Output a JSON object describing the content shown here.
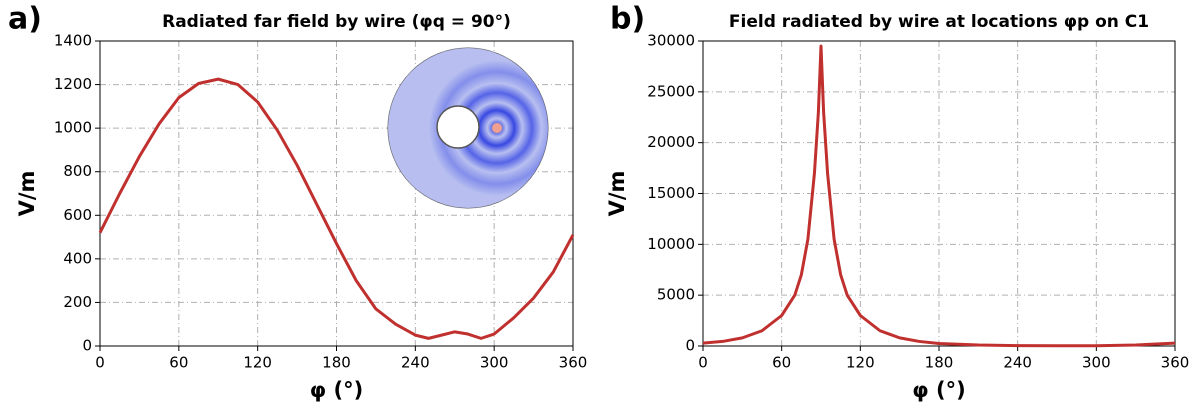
{
  "chart_data": [
    {
      "type": "line",
      "panel_label": "a)",
      "title": "Radiated far field by wire (φq = 90°)",
      "xlabel": "φ (°)",
      "ylabel": "V/m",
      "x": [
        0,
        15,
        30,
        45,
        60,
        75,
        90,
        105,
        120,
        135,
        150,
        165,
        180,
        195,
        210,
        225,
        240,
        250,
        260,
        270,
        280,
        290,
        300,
        315,
        330,
        345,
        360
      ],
      "values": [
        520,
        700,
        870,
        1020,
        1140,
        1205,
        1225,
        1200,
        1120,
        990,
        830,
        650,
        470,
        300,
        170,
        100,
        50,
        35,
        50,
        65,
        55,
        35,
        55,
        130,
        220,
        340,
        510
      ],
      "color": "#c0302e",
      "xlim": [
        0,
        360
      ],
      "xticks": [
        0,
        60,
        120,
        180,
        240,
        300,
        360
      ],
      "ylim": [
        0,
        1400
      ],
      "yticks": [
        0,
        200,
        400,
        600,
        800,
        1000,
        1200,
        1400
      ],
      "grid": true
    },
    {
      "type": "line",
      "panel_label": "b)",
      "title": "Field radiated  by wire at locations φp on C1",
      "xlabel": "φ (°)",
      "ylabel": "V/m",
      "x": [
        0,
        15,
        30,
        45,
        60,
        70,
        75,
        80,
        85,
        88,
        90,
        92,
        95,
        100,
        105,
        110,
        120,
        135,
        150,
        165,
        180,
        210,
        240,
        270,
        300,
        330,
        360
      ],
      "values": [
        280,
        450,
        800,
        1500,
        3000,
        5000,
        7000,
        10500,
        17000,
        23000,
        29500,
        23000,
        17000,
        10500,
        7000,
        5000,
        3000,
        1500,
        800,
        450,
        250,
        100,
        40,
        20,
        30,
        100,
        280
      ],
      "color": "#c0302e",
      "xlim": [
        0,
        360
      ],
      "xticks": [
        0,
        60,
        120,
        180,
        240,
        300,
        360
      ],
      "ylim": [
        0,
        30000
      ],
      "yticks": [
        0,
        5000,
        10000,
        15000,
        20000,
        25000,
        30000
      ],
      "grid": true
    }
  ]
}
